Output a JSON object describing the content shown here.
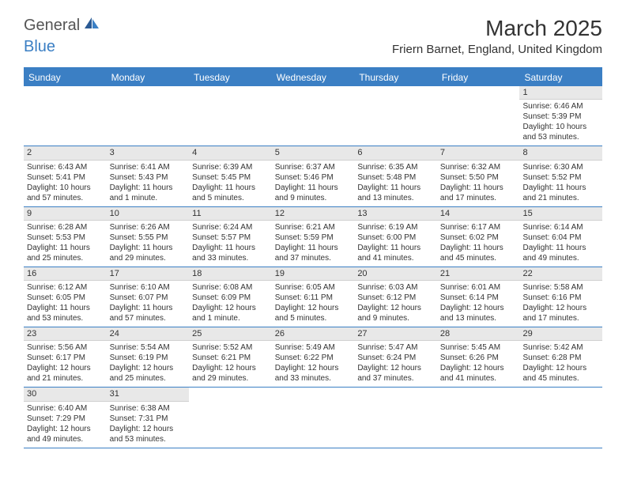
{
  "logo": {
    "text1": "General",
    "text2": "Blue",
    "accent": "#3b7fc4",
    "gray": "#6b6b6b"
  },
  "title": "March 2025",
  "location": "Friern Barnet, England, United Kingdom",
  "colors": {
    "headerBg": "#3b7fc4",
    "headerText": "#ffffff",
    "rowBorder": "#3b7fc4",
    "numBarBg": "#e8e8e8",
    "text": "#333333"
  },
  "dayNames": [
    "Sunday",
    "Monday",
    "Tuesday",
    "Wednesday",
    "Thursday",
    "Friday",
    "Saturday"
  ],
  "weeks": [
    [
      null,
      null,
      null,
      null,
      null,
      null,
      {
        "n": "1",
        "sr": "6:46 AM",
        "ss": "5:39 PM",
        "dl": "10 hours and 53 minutes."
      }
    ],
    [
      {
        "n": "2",
        "sr": "6:43 AM",
        "ss": "5:41 PM",
        "dl": "10 hours and 57 minutes."
      },
      {
        "n": "3",
        "sr": "6:41 AM",
        "ss": "5:43 PM",
        "dl": "11 hours and 1 minute."
      },
      {
        "n": "4",
        "sr": "6:39 AM",
        "ss": "5:45 PM",
        "dl": "11 hours and 5 minutes."
      },
      {
        "n": "5",
        "sr": "6:37 AM",
        "ss": "5:46 PM",
        "dl": "11 hours and 9 minutes."
      },
      {
        "n": "6",
        "sr": "6:35 AM",
        "ss": "5:48 PM",
        "dl": "11 hours and 13 minutes."
      },
      {
        "n": "7",
        "sr": "6:32 AM",
        "ss": "5:50 PM",
        "dl": "11 hours and 17 minutes."
      },
      {
        "n": "8",
        "sr": "6:30 AM",
        "ss": "5:52 PM",
        "dl": "11 hours and 21 minutes."
      }
    ],
    [
      {
        "n": "9",
        "sr": "6:28 AM",
        "ss": "5:53 PM",
        "dl": "11 hours and 25 minutes."
      },
      {
        "n": "10",
        "sr": "6:26 AM",
        "ss": "5:55 PM",
        "dl": "11 hours and 29 minutes."
      },
      {
        "n": "11",
        "sr": "6:24 AM",
        "ss": "5:57 PM",
        "dl": "11 hours and 33 minutes."
      },
      {
        "n": "12",
        "sr": "6:21 AM",
        "ss": "5:59 PM",
        "dl": "11 hours and 37 minutes."
      },
      {
        "n": "13",
        "sr": "6:19 AM",
        "ss": "6:00 PM",
        "dl": "11 hours and 41 minutes."
      },
      {
        "n": "14",
        "sr": "6:17 AM",
        "ss": "6:02 PM",
        "dl": "11 hours and 45 minutes."
      },
      {
        "n": "15",
        "sr": "6:14 AM",
        "ss": "6:04 PM",
        "dl": "11 hours and 49 minutes."
      }
    ],
    [
      {
        "n": "16",
        "sr": "6:12 AM",
        "ss": "6:05 PM",
        "dl": "11 hours and 53 minutes."
      },
      {
        "n": "17",
        "sr": "6:10 AM",
        "ss": "6:07 PM",
        "dl": "11 hours and 57 minutes."
      },
      {
        "n": "18",
        "sr": "6:08 AM",
        "ss": "6:09 PM",
        "dl": "12 hours and 1 minute."
      },
      {
        "n": "19",
        "sr": "6:05 AM",
        "ss": "6:11 PM",
        "dl": "12 hours and 5 minutes."
      },
      {
        "n": "20",
        "sr": "6:03 AM",
        "ss": "6:12 PM",
        "dl": "12 hours and 9 minutes."
      },
      {
        "n": "21",
        "sr": "6:01 AM",
        "ss": "6:14 PM",
        "dl": "12 hours and 13 minutes."
      },
      {
        "n": "22",
        "sr": "5:58 AM",
        "ss": "6:16 PM",
        "dl": "12 hours and 17 minutes."
      }
    ],
    [
      {
        "n": "23",
        "sr": "5:56 AM",
        "ss": "6:17 PM",
        "dl": "12 hours and 21 minutes."
      },
      {
        "n": "24",
        "sr": "5:54 AM",
        "ss": "6:19 PM",
        "dl": "12 hours and 25 minutes."
      },
      {
        "n": "25",
        "sr": "5:52 AM",
        "ss": "6:21 PM",
        "dl": "12 hours and 29 minutes."
      },
      {
        "n": "26",
        "sr": "5:49 AM",
        "ss": "6:22 PM",
        "dl": "12 hours and 33 minutes."
      },
      {
        "n": "27",
        "sr": "5:47 AM",
        "ss": "6:24 PM",
        "dl": "12 hours and 37 minutes."
      },
      {
        "n": "28",
        "sr": "5:45 AM",
        "ss": "6:26 PM",
        "dl": "12 hours and 41 minutes."
      },
      {
        "n": "29",
        "sr": "5:42 AM",
        "ss": "6:28 PM",
        "dl": "12 hours and 45 minutes."
      }
    ],
    [
      {
        "n": "30",
        "sr": "6:40 AM",
        "ss": "7:29 PM",
        "dl": "12 hours and 49 minutes."
      },
      {
        "n": "31",
        "sr": "6:38 AM",
        "ss": "7:31 PM",
        "dl": "12 hours and 53 minutes."
      },
      null,
      null,
      null,
      null,
      null
    ]
  ],
  "labels": {
    "sunrise": "Sunrise: ",
    "sunset": "Sunset: ",
    "daylight": "Daylight: "
  }
}
